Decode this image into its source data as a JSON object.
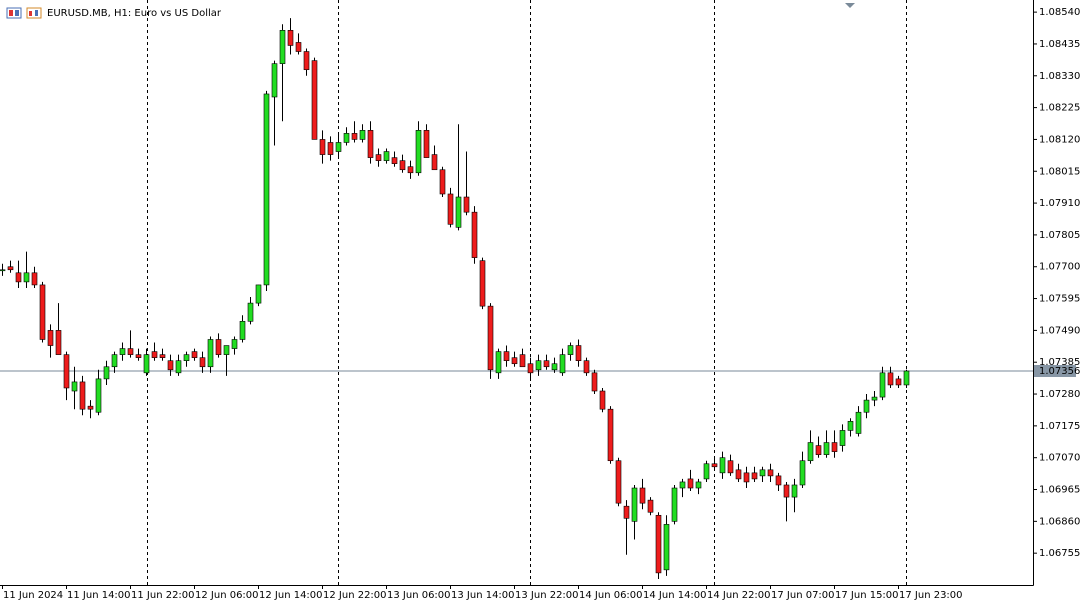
{
  "chart_data": {
    "type": "candlestick",
    "title": "EURUSD.MB, H1:  Euro vs US Dollar",
    "categories": [
      "11 Jun 2024",
      null,
      null,
      null,
      null,
      null,
      null,
      null,
      "11 Jun 14:00",
      null,
      null,
      null,
      null,
      null,
      null,
      null,
      "11 Jun 22:00",
      null,
      null,
      null,
      null,
      null,
      null,
      null,
      "12 Jun 06:00",
      null,
      null,
      null,
      null,
      null,
      null,
      null,
      "12 Jun 14:00",
      null,
      null,
      null,
      null,
      null,
      null,
      null,
      "12 Jun 22:00",
      null,
      null,
      null,
      null,
      null,
      null,
      null,
      "13 Jun 06:00",
      null,
      null,
      null,
      null,
      null,
      null,
      null,
      "13 Jun 14:00",
      null,
      null,
      null,
      null,
      null,
      null,
      null,
      "13 Jun 22:00",
      null,
      null,
      null,
      null,
      null,
      null,
      null,
      "14 Jun 06:00",
      null,
      null,
      null,
      null,
      null,
      null,
      null,
      "14 Jun 14:00",
      null,
      null,
      null,
      null,
      null,
      null,
      null,
      "14 Jun 22:00",
      null,
      null,
      null,
      null,
      null,
      null,
      null,
      "17 Jun 07:00",
      null,
      null,
      null,
      null,
      null,
      null,
      null,
      "17 Jun 15:00",
      null,
      null,
      null,
      null,
      null,
      null,
      null,
      "17 Jun 23:00",
      null
    ],
    "series": {
      "up_color": "#22dd22",
      "down_color": "#ee1c1c",
      "open": [
        1.0769,
        1.077,
        1.0768,
        1.0765,
        1.0768,
        1.0764,
        1.0749,
        1.0749,
        1.0741,
        1.0729,
        1.0732,
        1.0724,
        1.0722,
        1.0733,
        1.0737,
        1.0741,
        1.0743,
        1.0741,
        1.0735,
        1.0742,
        1.0741,
        1.0739,
        1.0735,
        1.0739,
        1.0742,
        1.074,
        1.0737,
        1.0746,
        1.0741,
        1.0743,
        1.0746,
        1.0752,
        1.0758,
        1.0764,
        1.0826,
        1.0837,
        1.0848,
        1.0844,
        1.0841,
        1.0838,
        1.0812,
        1.0811,
        1.0808,
        1.0811,
        1.0814,
        1.0812,
        1.0815,
        1.0807,
        1.0805,
        1.0806,
        1.0805,
        1.0803,
        1.0801,
        1.0815,
        1.0807,
        1.0802,
        1.0794,
        1.0783,
        1.0793,
        1.0788,
        1.0772,
        1.0757,
        1.0735,
        1.0742,
        1.074,
        1.0741,
        1.0738,
        1.0736,
        1.0739,
        1.0736,
        1.0735,
        1.0741,
        1.0744,
        1.0739,
        1.0735,
        1.0729,
        1.0723,
        1.0706,
        1.0691,
        1.0686,
        1.0697,
        1.0693,
        1.0688,
        1.067,
        1.0686,
        1.0697,
        1.07,
        1.0697,
        1.07,
        1.0705,
        1.0702,
        1.0706,
        1.0703,
        1.0702,
        1.0702,
        1.0701,
        1.0703,
        1.0701,
        1.0698,
        1.0694,
        1.0698,
        1.0706,
        1.0711,
        1.0708,
        1.0712,
        1.0711,
        1.0716,
        1.0715,
        1.0722,
        1.0726,
        1.0727,
        1.0735,
        1.0733,
        1.0731
      ],
      "high": [
        1.0771,
        1.0772,
        1.0772,
        1.0775,
        1.077,
        1.0765,
        1.0751,
        1.0758,
        1.0742,
        1.0737,
        1.0734,
        1.0726,
        1.0736,
        1.0739,
        1.0742,
        1.0745,
        1.0749,
        1.0743,
        1.0743,
        1.0745,
        1.0743,
        1.0741,
        1.0741,
        1.0742,
        1.0743,
        1.0742,
        1.0747,
        1.0748,
        1.0744,
        1.0747,
        1.0754,
        1.076,
        1.0764,
        1.0828,
        1.0838,
        1.085,
        1.0852,
        1.0847,
        1.0842,
        1.0839,
        1.0815,
        1.0813,
        1.0814,
        1.0816,
        1.0818,
        1.0817,
        1.0818,
        1.0809,
        1.0809,
        1.0808,
        1.0807,
        1.0805,
        1.0818,
        1.0817,
        1.081,
        1.0803,
        1.0796,
        1.0817,
        1.0808,
        1.079,
        1.0773,
        1.0758,
        1.0743,
        1.0744,
        1.0742,
        1.0743,
        1.074,
        1.0741,
        1.0741,
        1.074,
        1.0743,
        1.0745,
        1.0746,
        1.074,
        1.0736,
        1.073,
        1.0724,
        1.0707,
        1.0693,
        1.0698,
        1.07,
        1.0694,
        1.0689,
        1.0688,
        1.0698,
        1.07,
        1.0703,
        1.07,
        1.0706,
        1.0707,
        1.0709,
        1.0708,
        1.0705,
        1.0704,
        1.0704,
        1.0704,
        1.0705,
        1.0702,
        1.0699,
        1.07,
        1.0709,
        1.0716,
        1.0714,
        1.0716,
        1.0716,
        1.0718,
        1.072,
        1.0724,
        1.0728,
        1.0729,
        1.0737,
        1.0737,
        1.0734,
        1.0736
      ],
      "low": [
        1.0767,
        1.0768,
        1.0763,
        1.0763,
        1.0763,
        1.0745,
        1.074,
        1.0742,
        1.0726,
        1.0723,
        1.0721,
        1.072,
        1.0721,
        1.0731,
        1.0735,
        1.0739,
        1.074,
        1.0739,
        1.0734,
        1.0739,
        1.0739,
        1.0734,
        1.0734,
        1.0737,
        1.0739,
        1.0735,
        1.0735,
        1.074,
        1.0734,
        1.0741,
        1.0745,
        1.0751,
        1.0757,
        1.0762,
        1.081,
        1.0818,
        1.084,
        1.084,
        1.0833,
        1.0812,
        1.0804,
        1.0805,
        1.0806,
        1.081,
        1.0811,
        1.0811,
        1.0804,
        1.0803,
        1.0804,
        1.0803,
        1.0801,
        1.0799,
        1.08,
        1.0806,
        1.0802,
        1.0793,
        1.0783,
        1.0782,
        1.0787,
        1.0771,
        1.0756,
        1.0733,
        1.0733,
        1.0737,
        1.0737,
        1.0737,
        1.0733,
        1.0734,
        1.0736,
        1.0735,
        1.0734,
        1.0739,
        1.0737,
        1.0734,
        1.0728,
        1.0722,
        1.0705,
        1.0691,
        1.0675,
        1.068,
        1.069,
        1.0688,
        1.0667,
        1.0668,
        1.0685,
        1.0694,
        1.0696,
        1.0695,
        1.0699,
        1.0703,
        1.07,
        1.0701,
        1.0699,
        1.0697,
        1.0699,
        1.0699,
        1.0699,
        1.0696,
        1.0686,
        1.0689,
        1.0697,
        1.0705,
        1.0707,
        1.0707,
        1.0707,
        1.0709,
        1.0714,
        1.0714,
        1.072,
        1.0724,
        1.0726,
        1.073,
        1.073,
        1.073
      ],
      "close": [
        1.0769,
        1.0769,
        1.0765,
        1.0768,
        1.0764,
        1.0746,
        1.0744,
        1.0741,
        1.073,
        1.0732,
        1.0723,
        1.0723,
        1.0733,
        1.0737,
        1.0741,
        1.0743,
        1.0741,
        1.074,
        1.0741,
        1.074,
        1.074,
        1.0736,
        1.0739,
        1.0741,
        1.074,
        1.0737,
        1.0746,
        1.0741,
        1.0744,
        1.0746,
        1.0752,
        1.0758,
        1.0764,
        1.0827,
        1.0837,
        1.0848,
        1.0843,
        1.0841,
        1.0835,
        1.0812,
        1.0807,
        1.0807,
        1.0811,
        1.0814,
        1.0812,
        1.0815,
        1.0806,
        1.0805,
        1.0808,
        1.0804,
        1.0802,
        1.0801,
        1.0815,
        1.0806,
        1.0802,
        1.0794,
        1.0784,
        1.0793,
        1.0788,
        1.0773,
        1.0757,
        1.0736,
        1.0742,
        1.0739,
        1.0738,
        1.0737,
        1.0735,
        1.0739,
        1.0737,
        1.0738,
        1.0741,
        1.0744,
        1.0739,
        1.0735,
        1.0729,
        1.0723,
        1.0706,
        1.0692,
        1.0687,
        1.0697,
        1.0692,
        1.0689,
        1.0669,
        1.0685,
        1.0697,
        1.0699,
        1.0697,
        1.0699,
        1.0705,
        1.0704,
        1.0707,
        1.0702,
        1.07,
        1.0699,
        1.07,
        1.0703,
        1.0701,
        1.0698,
        1.0694,
        1.0698,
        1.0706,
        1.0712,
        1.0708,
        1.0712,
        1.0709,
        1.0716,
        1.0719,
        1.0722,
        1.0726,
        1.0727,
        1.0735,
        1.0731,
        1.0731,
        1.07356
      ]
    },
    "last_price": {
      "value": 1.07356,
      "label": "1.07356"
    },
    "ylim": [
      1.0665,
      1.0858
    ],
    "yticks": [
      {
        "value": 1.0854,
        "label": "1.08540"
      },
      {
        "value": 1.08435,
        "label": "1.08435"
      },
      {
        "value": 1.0833,
        "label": "1.08330"
      },
      {
        "value": 1.08225,
        "label": "1.08225"
      },
      {
        "value": 1.0812,
        "label": "1.08120"
      },
      {
        "value": 1.08015,
        "label": "1.08015"
      },
      {
        "value": 1.0791,
        "label": "1.07910"
      },
      {
        "value": 1.07805,
        "label": "1.07805"
      },
      {
        "value": 1.077,
        "label": "1.07700"
      },
      {
        "value": 1.07595,
        "label": "1.07595"
      },
      {
        "value": 1.0749,
        "label": "1.07490"
      },
      {
        "value": 1.07385,
        "label": "1.07385"
      },
      {
        "value": 1.0728,
        "label": "1.07280"
      },
      {
        "value": 1.07175,
        "label": "1.07175"
      },
      {
        "value": 1.0707,
        "label": "1.07070"
      },
      {
        "value": 1.06965,
        "label": "1.06965"
      },
      {
        "value": 1.0686,
        "label": "1.06860"
      },
      {
        "value": 1.06755,
        "label": "1.06755"
      }
    ],
    "grid": false
  }
}
